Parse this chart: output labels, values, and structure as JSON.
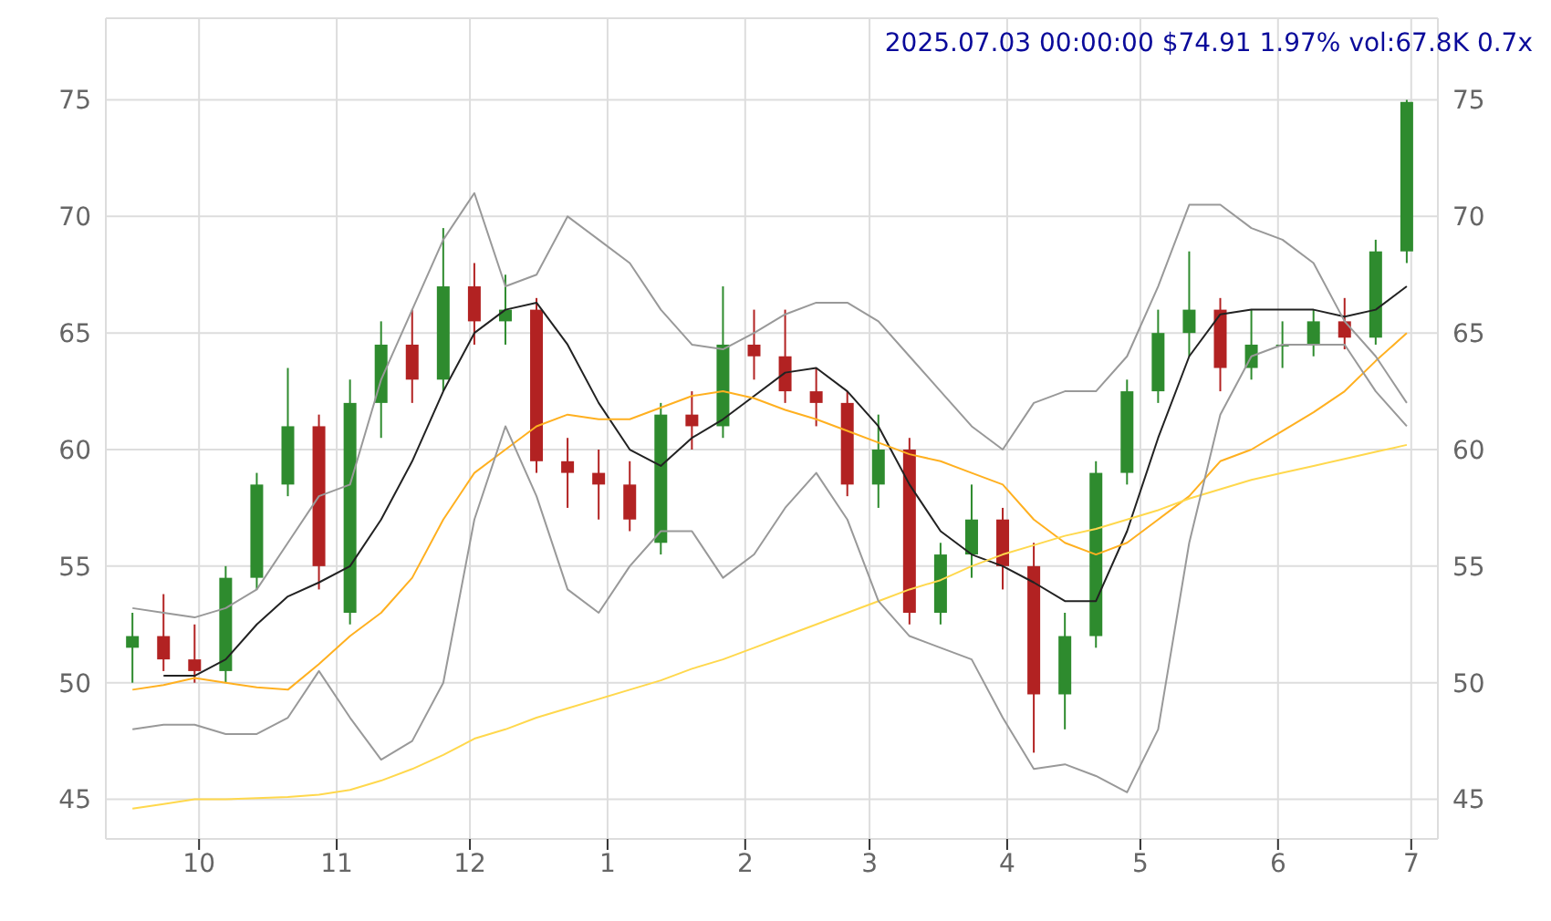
{
  "chart_data": {
    "type": "candlestick",
    "title": "2025.07.03 00:00:00 $74.91 1.97% vol:67.8K 0.7x",
    "x": [
      "2024-09-16",
      "2024-09-23",
      "2024-09-30",
      "2024-10-07",
      "2024-10-14",
      "2024-10-21",
      "2024-10-28",
      "2024-11-04",
      "2024-11-11",
      "2024-11-18",
      "2024-11-25",
      "2024-12-02",
      "2024-12-09",
      "2024-12-16",
      "2024-12-23",
      "2024-12-30",
      "2025-01-06",
      "2025-01-13",
      "2025-01-20",
      "2025-01-27",
      "2025-02-03",
      "2025-02-10",
      "2025-02-17",
      "2025-02-24",
      "2025-03-03",
      "2025-03-10",
      "2025-03-17",
      "2025-03-24",
      "2025-03-31",
      "2025-04-07",
      "2025-04-14",
      "2025-04-21",
      "2025-04-28",
      "2025-05-05",
      "2025-05-12",
      "2025-05-19",
      "2025-05-26",
      "2025-06-02",
      "2025-06-09",
      "2025-06-16",
      "2025-06-23",
      "2025-06-30"
    ],
    "ohlc": [
      [
        51.5,
        53,
        50,
        52
      ],
      [
        52,
        53.8,
        50.5,
        51
      ],
      [
        51,
        52.5,
        50,
        50.5
      ],
      [
        50.5,
        55,
        50,
        54.5
      ],
      [
        54.5,
        59,
        54,
        58.5
      ],
      [
        58.5,
        63.5,
        58,
        61
      ],
      [
        61,
        61.5,
        54,
        55
      ],
      [
        53,
        63,
        52.5,
        62
      ],
      [
        62,
        65.5,
        60.5,
        64.5
      ],
      [
        64.5,
        66,
        62,
        63
      ],
      [
        63,
        69.5,
        62.5,
        67
      ],
      [
        67,
        68,
        64.5,
        65.5
      ],
      [
        65.5,
        67.5,
        64.5,
        66
      ],
      [
        66,
        66.5,
        59,
        59.5
      ],
      [
        59.5,
        60.5,
        57.5,
        59
      ],
      [
        59,
        60,
        57,
        58.5
      ],
      [
        58.5,
        59.5,
        56.5,
        57
      ],
      [
        56,
        62,
        55.5,
        61.5
      ],
      [
        61.5,
        62.5,
        60,
        61
      ],
      [
        61,
        67,
        60.5,
        64.5
      ],
      [
        64.5,
        66,
        63,
        64
      ],
      [
        64,
        66,
        62,
        62.5
      ],
      [
        62.5,
        63.5,
        61,
        62
      ],
      [
        62,
        62.5,
        58,
        58.5
      ],
      [
        58.5,
        61.5,
        57.5,
        60
      ],
      [
        60,
        60.5,
        52.5,
        53
      ],
      [
        53,
        56,
        52.5,
        55.5
      ],
      [
        55.5,
        58.5,
        54.5,
        57
      ],
      [
        57,
        57.5,
        54,
        55
      ],
      [
        55,
        56,
        47,
        49.5
      ],
      [
        49.5,
        53,
        48,
        52
      ],
      [
        52,
        59.5,
        51.5,
        59
      ],
      [
        59,
        63,
        58.5,
        62.5
      ],
      [
        62.5,
        66,
        62,
        65
      ],
      [
        65,
        68.5,
        64,
        66
      ],
      [
        66,
        66.5,
        62.5,
        63.5
      ],
      [
        63.5,
        66,
        63,
        64.5
      ],
      [
        64.5,
        65.5,
        63.5,
        64.5
      ],
      [
        64.5,
        66,
        64,
        65.5
      ],
      [
        65.5,
        66.5,
        64.3,
        64.8
      ],
      [
        64.8,
        69,
        64.5,
        68.5
      ],
      [
        68.5,
        75,
        68,
        74.91
      ]
    ],
    "colors": [
      "#2e8b2e",
      "#b22222",
      "#b22222",
      "#2e8b2e",
      "#2e8b2e",
      "#2e8b2e",
      "#b22222",
      "#2e8b2e",
      "#2e8b2e",
      "#b22222",
      "#2e8b2e",
      "#b22222",
      "#2e8b2e",
      "#b22222",
      "#b22222",
      "#b22222",
      "#b22222",
      "#2e8b2e",
      "#b22222",
      "#2e8b2e",
      "#b22222",
      "#b22222",
      "#b22222",
      "#b22222",
      "#2e8b2e",
      "#b22222",
      "#2e8b2e",
      "#2e8b2e",
      "#b22222",
      "#b22222",
      "#2e8b2e",
      "#2e8b2e",
      "#2e8b2e",
      "#2e8b2e",
      "#2e8b2e",
      "#b22222",
      "#2e8b2e",
      "#2e8b2e",
      "#2e8b2e",
      "#b22222",
      "#2e8b2e",
      "#2e8b2e"
    ],
    "series": [
      {
        "type": "line",
        "color": "#222222",
        "values": [
          null,
          50.3,
          50.3,
          51,
          52.5,
          53.7,
          54.3,
          55,
          57,
          59.5,
          62.5,
          65,
          66,
          66.3,
          64.5,
          62,
          60,
          59.3,
          60.5,
          61.3,
          62.3,
          63.3,
          63.5,
          62.5,
          61,
          58.5,
          56.5,
          55.5,
          55,
          54.3,
          53.5,
          53.5,
          56.5,
          60.5,
          64,
          65.8,
          66,
          66,
          66,
          65.7,
          66,
          67
        ]
      },
      {
        "type": "line",
        "color": "#ffb020",
        "values": [
          49.7,
          49.9,
          50.2,
          50,
          49.8,
          49.7,
          50.8,
          52,
          53,
          54.5,
          57,
          59,
          60,
          61,
          61.5,
          61.3,
          61.3,
          61.8,
          62.3,
          62.5,
          62.2,
          61.7,
          61.3,
          60.8,
          60.3,
          59.8,
          59.5,
          59,
          58.5,
          57,
          56,
          55.5,
          56,
          57,
          58,
          59.5,
          60,
          60.8,
          61.6,
          62.5,
          63.8,
          65
        ]
      },
      {
        "type": "line",
        "color": "#ffd84d",
        "values": [
          44.6,
          44.8,
          45,
          45,
          45.05,
          45.1,
          45.2,
          45.4,
          45.8,
          46.3,
          46.9,
          47.6,
          48,
          48.5,
          48.9,
          49.3,
          49.7,
          50.1,
          50.6,
          51,
          51.5,
          52,
          52.5,
          53,
          53.5,
          54,
          54.4,
          55,
          55.5,
          55.9,
          56.3,
          56.6,
          57,
          57.4,
          57.9,
          58.3,
          58.7,
          59,
          59.3,
          59.6,
          59.9,
          60.2
        ]
      },
      {
        "type": "line",
        "color": "#999999",
        "values": [
          53.2,
          53,
          52.8,
          53.2,
          54,
          56,
          58,
          58.5,
          63,
          66,
          69,
          71,
          67,
          67.5,
          70,
          69,
          68,
          66,
          64.5,
          64.3,
          65,
          65.8,
          66.3,
          66.3,
          65.5,
          64,
          62.5,
          61,
          60,
          62,
          62.5,
          62.5,
          64,
          67,
          70.5,
          70.5,
          69.5,
          69,
          68,
          65.5,
          64,
          62
        ]
      },
      {
        "type": "line",
        "color": "#999999",
        "values": [
          48,
          48.2,
          48.2,
          47.8,
          47.8,
          48.5,
          50.5,
          48.5,
          46.7,
          47.5,
          50,
          57,
          61,
          58,
          54,
          53,
          55,
          56.5,
          56.5,
          54.5,
          55.5,
          57.5,
          59,
          57,
          53.5,
          52,
          51.5,
          51,
          48.5,
          46.3,
          46.5,
          46,
          45.3,
          48,
          56,
          61.5,
          64,
          64.5,
          64.5,
          64.5,
          62.5,
          61
        ]
      }
    ],
    "xlim": [
      "2024-09-10",
      "2025-07-07"
    ],
    "xticks": [
      {
        "value": "2024-10-01",
        "label": "10"
      },
      {
        "value": "2024-11-01",
        "label": "11"
      },
      {
        "value": "2024-12-01",
        "label": "12"
      },
      {
        "value": "2025-01-01",
        "label": "1"
      },
      {
        "value": "2025-02-01",
        "label": "2"
      },
      {
        "value": "2025-03-01",
        "label": "3"
      },
      {
        "value": "2025-04-01",
        "label": "4"
      },
      {
        "value": "2025-05-01",
        "label": "5"
      },
      {
        "value": "2025-06-01",
        "label": "6"
      },
      {
        "value": "2025-07-01",
        "label": "7"
      }
    ],
    "ylim": [
      43.3,
      78.5
    ],
    "yticks": [
      45,
      50,
      55,
      60,
      65,
      70,
      75
    ],
    "y2lim": [
      43.3,
      78.5
    ],
    "y2ticks": [
      45,
      50,
      55,
      60,
      65,
      70,
      75
    ],
    "grid": true
  }
}
